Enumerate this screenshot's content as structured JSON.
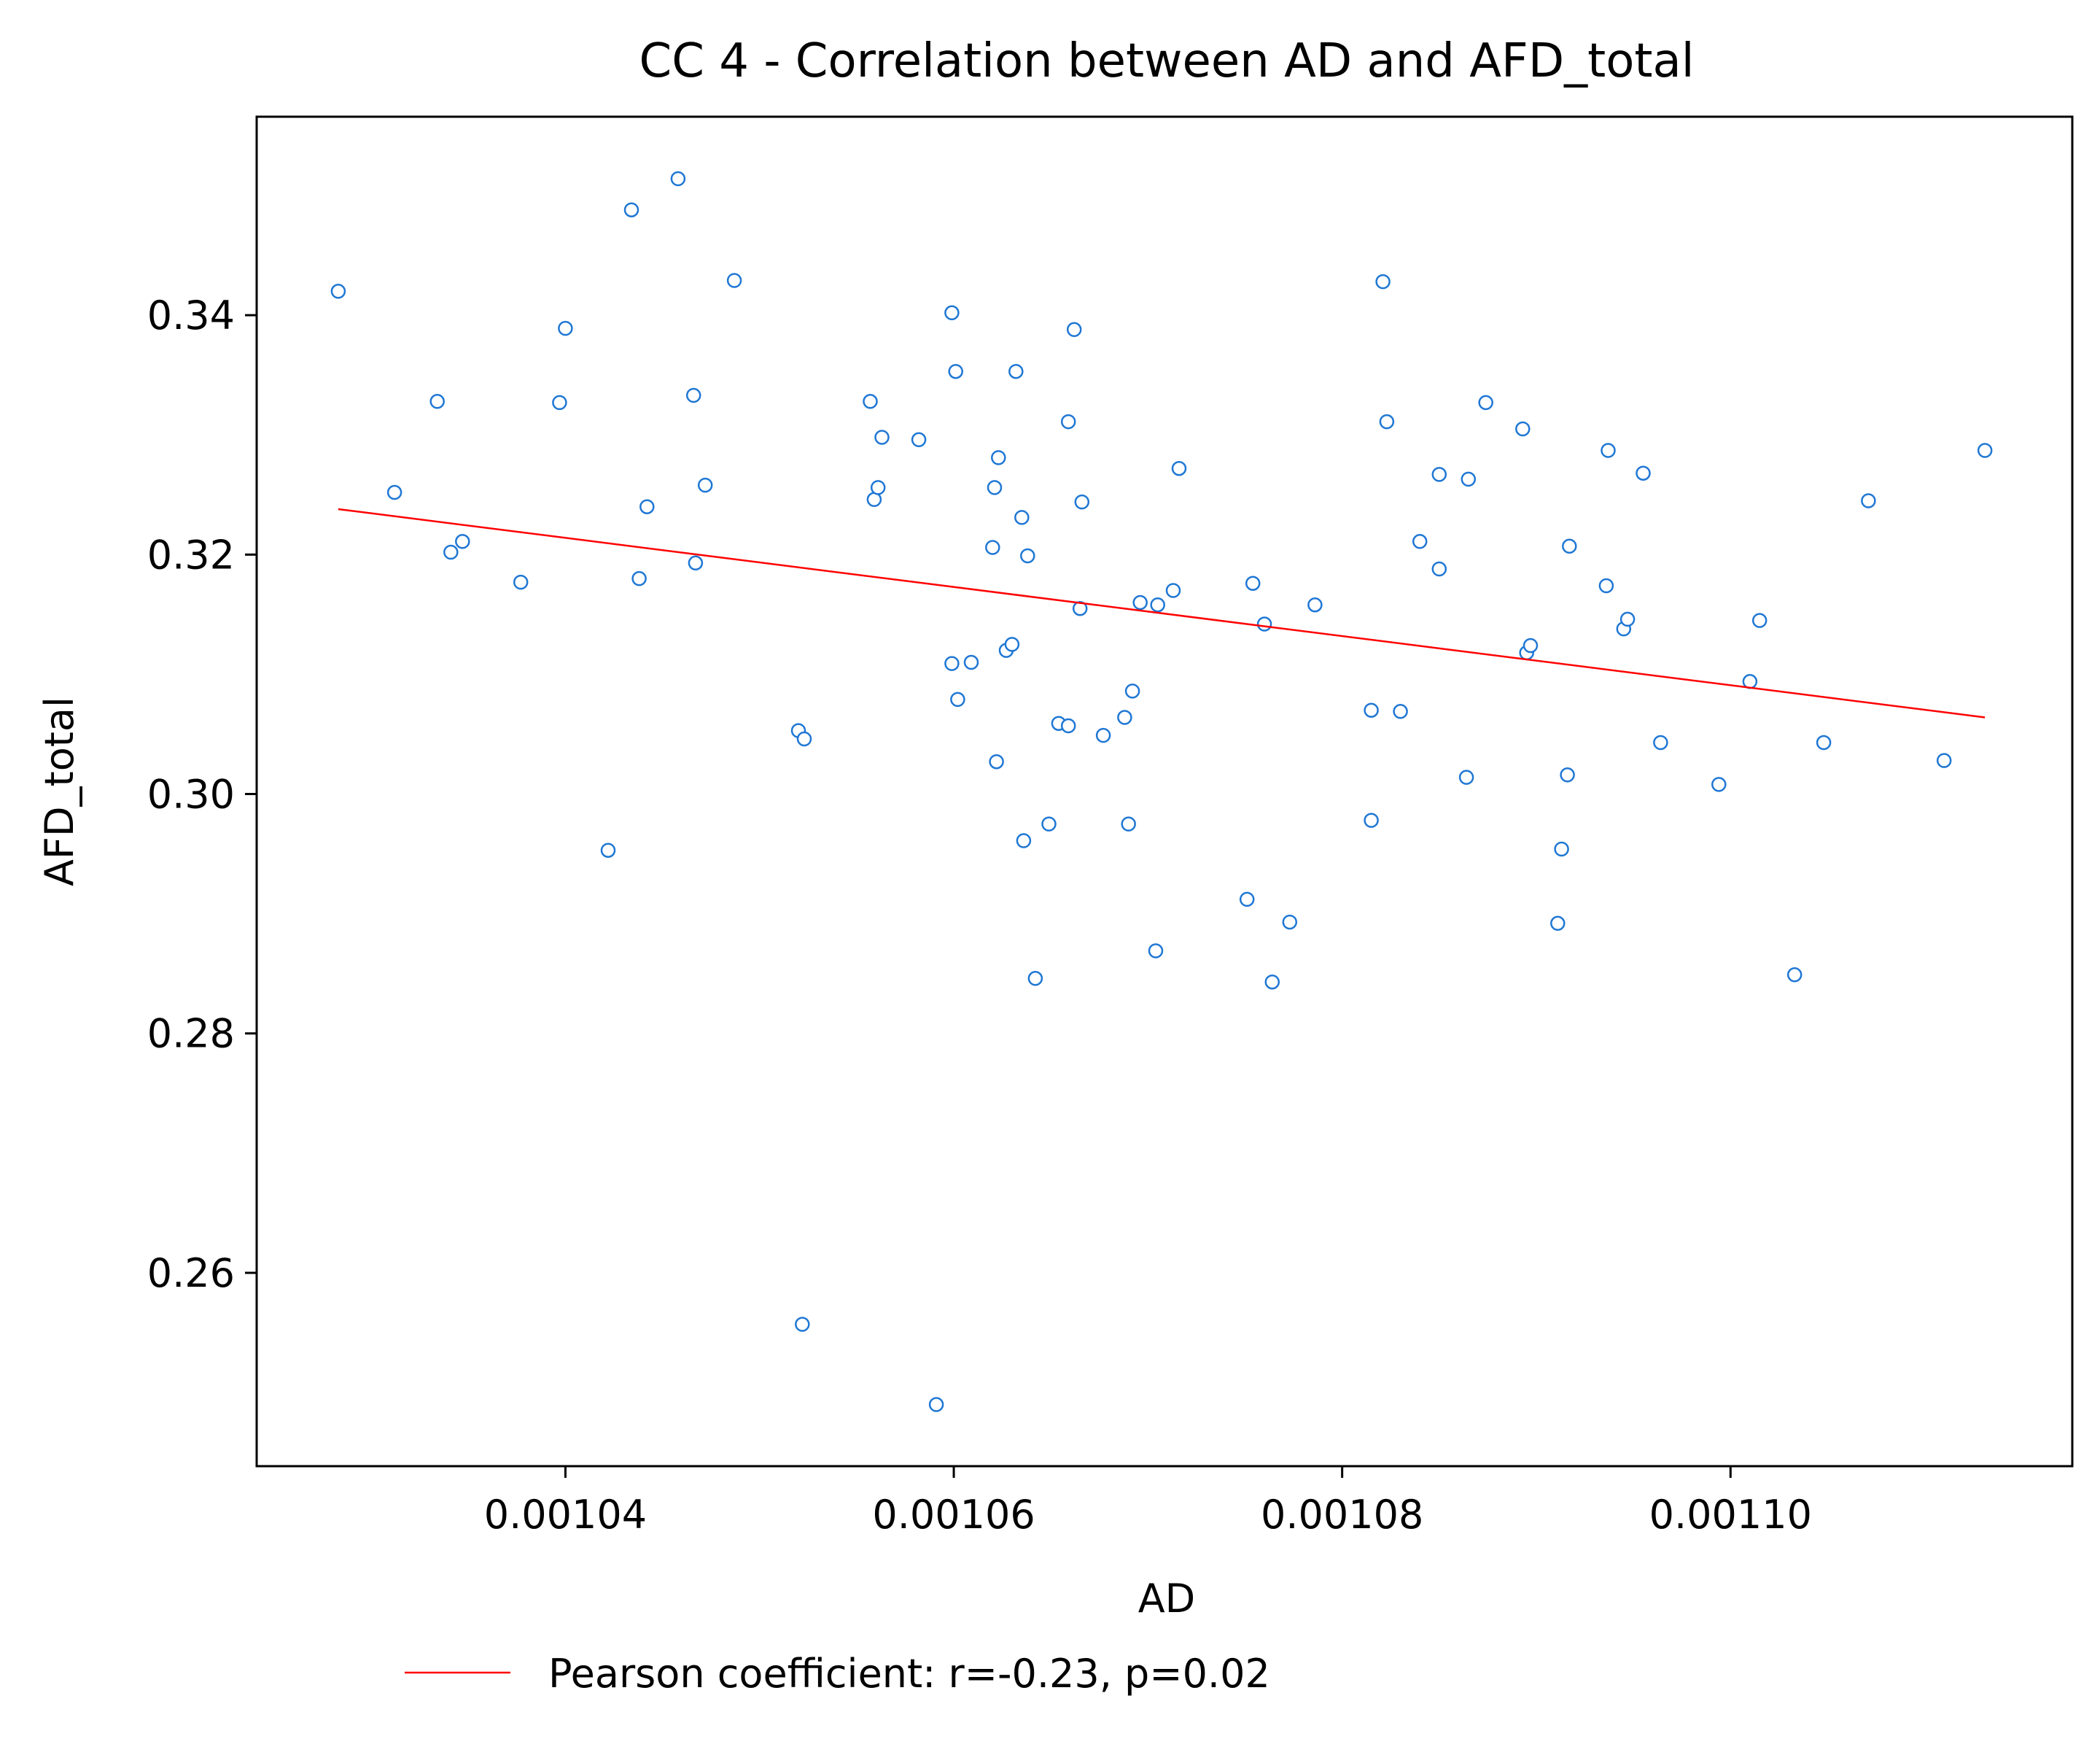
{
  "chart_data": {
    "type": "scatter",
    "title": "CC 4 - Correlation between AD and AFD_total",
    "xlabel": "AD",
    "ylabel": "AFD_total",
    "xlim": [
      0.0010241,
      0.0011176
    ],
    "ylim": [
      0.24385,
      0.35658
    ],
    "x_ticks": [
      0.00104,
      0.00106,
      0.00108,
      0.0011
    ],
    "x_tick_labels": [
      "0.00104",
      "0.00106",
      "0.00108",
      "0.00110"
    ],
    "y_ticks": [
      0.26,
      0.28,
      0.3,
      0.32,
      0.34
    ],
    "y_tick_labels": [
      "0.26",
      "0.28",
      "0.30",
      "0.32",
      "0.34"
    ],
    "grid": false,
    "legend": {
      "placement": "below-left",
      "entries": [
        "Pearson coefficient: r=-0.23, p=0.02"
      ]
    },
    "colors": {
      "points": "#1f77d4",
      "fit_line": "#ff0000"
    },
    "fit_line": {
      "name": "Pearson coefficient: r=-0.23, p=0.02",
      "x": [
        0.0010283,
        0.0011131
      ],
      "y": [
        0.3238,
        0.3064
      ]
    },
    "points": [
      [
        0.0010283,
        0.342
      ],
      [
        0.0010312,
        0.3252
      ],
      [
        0.0010334,
        0.3328
      ],
      [
        0.0010341,
        0.3202
      ],
      [
        0.0010347,
        0.3211
      ],
      [
        0.0010377,
        0.3177
      ],
      [
        0.0010397,
        0.3327
      ],
      [
        0.00104,
        0.3389
      ],
      [
        0.0010422,
        0.2953
      ],
      [
        0.0010434,
        0.3488
      ],
      [
        0.0010438,
        0.318
      ],
      [
        0.0010442,
        0.324
      ],
      [
        0.0010458,
        0.3514
      ],
      [
        0.0010466,
        0.3333
      ],
      [
        0.0010467,
        0.3193
      ],
      [
        0.0010472,
        0.3258
      ],
      [
        0.0010487,
        0.3429
      ],
      [
        0.001052,
        0.3053
      ],
      [
        0.0010523,
        0.3046
      ],
      [
        0.0010522,
        0.2557
      ],
      [
        0.0010557,
        0.3328
      ],
      [
        0.0010559,
        0.3246
      ],
      [
        0.0010561,
        0.3256
      ],
      [
        0.0010563,
        0.3298
      ],
      [
        0.0010582,
        0.3296
      ],
      [
        0.0010591,
        0.249
      ],
      [
        0.0010599,
        0.3402
      ],
      [
        0.0010599,
        0.3109
      ],
      [
        0.0010601,
        0.3353
      ],
      [
        0.0010602,
        0.3079
      ],
      [
        0.0010609,
        0.311
      ],
      [
        0.001062,
        0.3206
      ],
      [
        0.0010621,
        0.3256
      ],
      [
        0.0010622,
        0.3027
      ],
      [
        0.0010623,
        0.3281
      ],
      [
        0.0010627,
        0.312
      ],
      [
        0.001063,
        0.3125
      ],
      [
        0.0010632,
        0.3353
      ],
      [
        0.0010635,
        0.3231
      ],
      [
        0.0010636,
        0.2961
      ],
      [
        0.0010638,
        0.3199
      ],
      [
        0.0010642,
        0.2846
      ],
      [
        0.0010649,
        0.2975
      ],
      [
        0.0010654,
        0.3059
      ],
      [
        0.0010659,
        0.3311
      ],
      [
        0.0010659,
        0.3057
      ],
      [
        0.0010662,
        0.3388
      ],
      [
        0.0010665,
        0.3155
      ],
      [
        0.0010666,
        0.3244
      ],
      [
        0.0010677,
        0.3049
      ],
      [
        0.0010688,
        0.3064
      ],
      [
        0.001069,
        0.2975
      ],
      [
        0.0010692,
        0.3086
      ],
      [
        0.0010696,
        0.316
      ],
      [
        0.0010704,
        0.2869
      ],
      [
        0.0010705,
        0.3158
      ],
      [
        0.0010713,
        0.317
      ],
      [
        0.0010716,
        0.3272
      ],
      [
        0.0010751,
        0.2912
      ],
      [
        0.0010754,
        0.3176
      ],
      [
        0.001076,
        0.3142
      ],
      [
        0.0010764,
        0.2843
      ],
      [
        0.0010773,
        0.2893
      ],
      [
        0.0010786,
        0.3158
      ],
      [
        0.0010815,
        0.307
      ],
      [
        0.0010815,
        0.2978
      ],
      [
        0.0010821,
        0.3428
      ],
      [
        0.0010823,
        0.3311
      ],
      [
        0.001083,
        0.3069
      ],
      [
        0.001084,
        0.3211
      ],
      [
        0.001085,
        0.3267
      ],
      [
        0.001085,
        0.3188
      ],
      [
        0.0010864,
        0.3014
      ],
      [
        0.0010865,
        0.3263
      ],
      [
        0.0010874,
        0.3327
      ],
      [
        0.0010893,
        0.3305
      ],
      [
        0.0010895,
        0.3118
      ],
      [
        0.0010897,
        0.3124
      ],
      [
        0.0010911,
        0.2892
      ],
      [
        0.0010913,
        0.2954
      ],
      [
        0.0010916,
        0.3016
      ],
      [
        0.0010917,
        0.3207
      ],
      [
        0.0010936,
        0.3174
      ],
      [
        0.0010937,
        0.3287
      ],
      [
        0.0010945,
        0.3138
      ],
      [
        0.0010947,
        0.3146
      ],
      [
        0.0010955,
        0.3268
      ],
      [
        0.0010964,
        0.3043
      ],
      [
        0.0010994,
        0.3008
      ],
      [
        0.001101,
        0.3094
      ],
      [
        0.0011015,
        0.3145
      ],
      [
        0.0011033,
        0.2849
      ],
      [
        0.0011048,
        0.3043
      ],
      [
        0.0011071,
        0.3245
      ],
      [
        0.001111,
        0.3028
      ],
      [
        0.0011131,
        0.3287
      ]
    ]
  }
}
